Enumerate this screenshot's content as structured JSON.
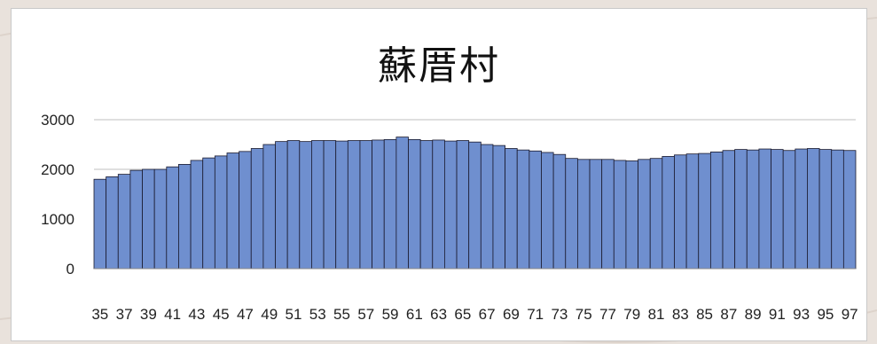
{
  "chart_data": {
    "type": "bar",
    "title": "蘇厝村",
    "xlabel": "",
    "ylabel": "",
    "ylim": [
      0,
      3000
    ],
    "yticks": [
      0,
      1000,
      2000,
      3000
    ],
    "grid": true,
    "legend": "none",
    "bar_color": "#6f8fcf",
    "bar_edge_color": "#1a1a2e",
    "categories": [
      "35",
      "36",
      "37",
      "38",
      "39",
      "40",
      "41",
      "42",
      "43",
      "44",
      "45",
      "46",
      "47",
      "48",
      "49",
      "50",
      "51",
      "52",
      "53",
      "54",
      "55",
      "56",
      "57",
      "58",
      "59",
      "60",
      "61",
      "62",
      "63",
      "64",
      "65",
      "66",
      "67",
      "68",
      "69",
      "70",
      "71",
      "72",
      "73",
      "74",
      "75",
      "76",
      "77",
      "78",
      "79",
      "80",
      "81",
      "82",
      "83",
      "84",
      "85",
      "86",
      "87",
      "88",
      "89",
      "90",
      "91",
      "92",
      "93",
      "94",
      "95",
      "96",
      "97"
    ],
    "xtick_labels": [
      "35",
      "37",
      "39",
      "41",
      "43",
      "45",
      "47",
      "49",
      "51",
      "53",
      "55",
      "57",
      "59",
      "61",
      "63",
      "65",
      "67",
      "69",
      "71",
      "73",
      "75",
      "77",
      "79",
      "81",
      "83",
      "85",
      "87",
      "89",
      "91",
      "93",
      "95",
      "97"
    ],
    "values": [
      1800,
      1850,
      1900,
      1980,
      2000,
      2000,
      2050,
      2100,
      2180,
      2230,
      2270,
      2330,
      2360,
      2420,
      2500,
      2560,
      2580,
      2560,
      2580,
      2580,
      2570,
      2580,
      2580,
      2590,
      2600,
      2650,
      2600,
      2580,
      2590,
      2570,
      2580,
      2550,
      2500,
      2480,
      2420,
      2390,
      2370,
      2340,
      2300,
      2220,
      2200,
      2200,
      2200,
      2180,
      2170,
      2200,
      2220,
      2260,
      2290,
      2310,
      2320,
      2350,
      2380,
      2400,
      2390,
      2410,
      2400,
      2380,
      2410,
      2420,
      2400,
      2390,
      2380
    ]
  }
}
